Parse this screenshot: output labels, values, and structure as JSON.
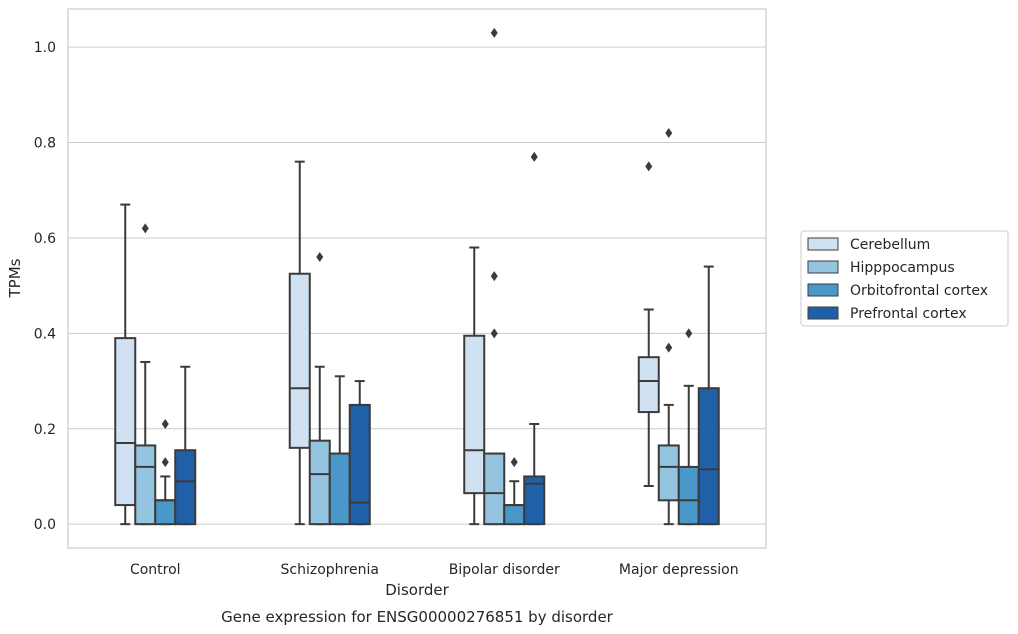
{
  "chart_data": {
    "type": "box",
    "caption": "Gene expression for ENSG00000276851 by disorder",
    "xlabel": "Disorder",
    "ylabel": "TPMs",
    "ylim": [
      -0.05,
      1.08
    ],
    "yticks": [
      0.0,
      0.2,
      0.4,
      0.6,
      0.8,
      1.0
    ],
    "ytick_labels": [
      "0.0",
      "0.2",
      "0.4",
      "0.6",
      "0.8",
      "1.0"
    ],
    "grid": "horizontal",
    "legend_position": "right",
    "categories": [
      "Control",
      "Schizophrenia",
      "Bipolar disorder",
      "Major depression"
    ],
    "series": [
      {
        "name": "Cerebellum",
        "color": "#d0e1f2",
        "boxes": [
          {
            "whisker_low": 0.0,
            "q1": 0.04,
            "median": 0.17,
            "q3": 0.39,
            "whisker_high": 0.67,
            "outliers": []
          },
          {
            "whisker_low": 0.0,
            "q1": 0.16,
            "median": 0.285,
            "q3": 0.525,
            "whisker_high": 0.76,
            "outliers": []
          },
          {
            "whisker_low": 0.0,
            "q1": 0.065,
            "median": 0.155,
            "q3": 0.395,
            "whisker_high": 0.58,
            "outliers": []
          },
          {
            "whisker_low": 0.08,
            "q1": 0.235,
            "median": 0.3,
            "q3": 0.35,
            "whisker_high": 0.45,
            "outliers": [
              0.75
            ]
          }
        ]
      },
      {
        "name": "Hipppocampus",
        "color": "#94c4df",
        "boxes": [
          {
            "whisker_low": 0.0,
            "q1": 0.0,
            "median": 0.12,
            "q3": 0.165,
            "whisker_high": 0.34,
            "outliers": [
              0.62
            ]
          },
          {
            "whisker_low": 0.0,
            "q1": 0.0,
            "median": 0.105,
            "q3": 0.175,
            "whisker_high": 0.33,
            "outliers": [
              0.56
            ]
          },
          {
            "whisker_low": 0.0,
            "q1": 0.0,
            "median": 0.065,
            "q3": 0.148,
            "whisker_high": 0.148,
            "outliers": [
              0.4,
              0.52,
              1.03
            ]
          },
          {
            "whisker_low": 0.0,
            "q1": 0.05,
            "median": 0.12,
            "q3": 0.165,
            "whisker_high": 0.25,
            "outliers": [
              0.37,
              0.82
            ]
          }
        ]
      },
      {
        "name": "Orbitofrontal cortex",
        "color": "#4a98c9",
        "boxes": [
          {
            "whisker_low": 0.0,
            "q1": 0.0,
            "median": 0.05,
            "q3": 0.05,
            "whisker_high": 0.1,
            "outliers": [
              0.13,
              0.21
            ]
          },
          {
            "whisker_low": 0.0,
            "q1": 0.0,
            "median": 0.148,
            "q3": 0.148,
            "whisker_high": 0.31,
            "outliers": []
          },
          {
            "whisker_low": 0.0,
            "q1": 0.0,
            "median": 0.04,
            "q3": 0.04,
            "whisker_high": 0.09,
            "outliers": [
              0.13
            ]
          },
          {
            "whisker_low": 0.0,
            "q1": 0.0,
            "median": 0.05,
            "q3": 0.12,
            "whisker_high": 0.29,
            "outliers": [
              0.4
            ]
          }
        ]
      },
      {
        "name": "Prefrontal cortex",
        "color": "#2060a8",
        "boxes": [
          {
            "whisker_low": 0.0,
            "q1": 0.0,
            "median": 0.09,
            "q3": 0.155,
            "whisker_high": 0.33,
            "outliers": []
          },
          {
            "whisker_low": 0.0,
            "q1": 0.0,
            "median": 0.045,
            "q3": 0.25,
            "whisker_high": 0.3,
            "outliers": []
          },
          {
            "whisker_low": 0.0,
            "q1": 0.0,
            "median": 0.085,
            "q3": 0.1,
            "whisker_high": 0.21,
            "outliers": [
              0.77
            ]
          },
          {
            "whisker_low": 0.0,
            "q1": 0.0,
            "median": 0.115,
            "q3": 0.285,
            "whisker_high": 0.54,
            "outliers": []
          }
        ]
      }
    ]
  }
}
